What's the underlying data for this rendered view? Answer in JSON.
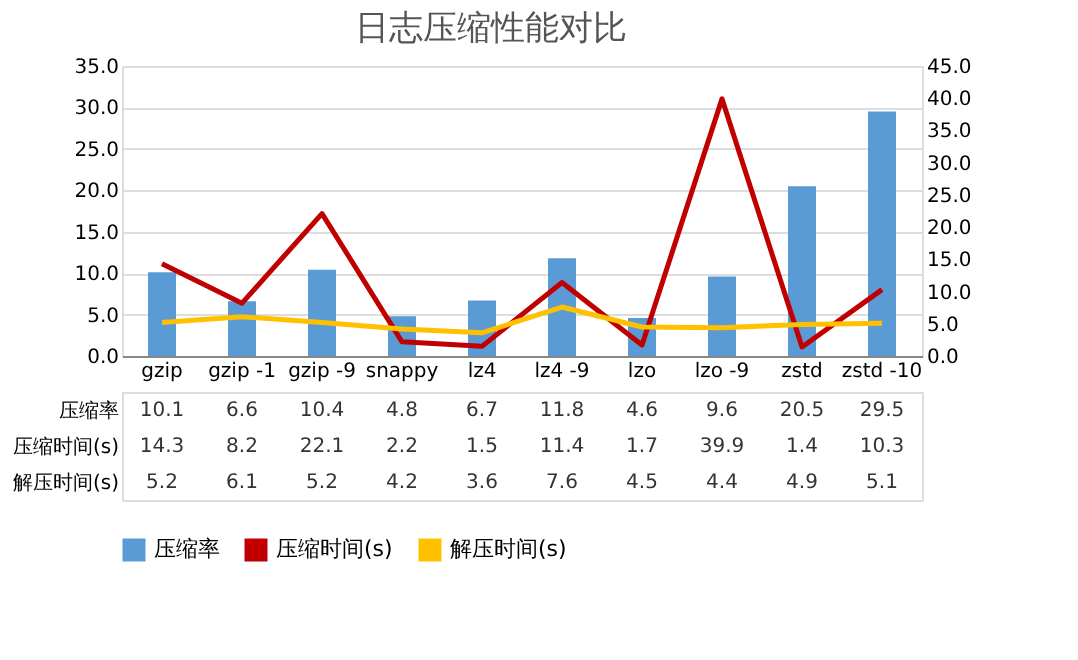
{
  "chart_data": {
    "type": "bar",
    "title": "日志压缩性能对比",
    "categories": [
      "gzip",
      "gzip -1",
      "gzip -9",
      "snappy",
      "lz4",
      "lz4 -9",
      "lzo",
      "lzo -9",
      "zstd",
      "zstd -10"
    ],
    "series": [
      {
        "name": "压缩率",
        "color": "#5b9bd5",
        "values": [
          10.1,
          6.6,
          10.4,
          4.8,
          6.7,
          11.8,
          4.6,
          9.6,
          20.5,
          29.5
        ]
      },
      {
        "name": "压缩时间(s)",
        "type": "line",
        "axis": "y2",
        "color": "#c00000",
        "values": [
          14.3,
          8.2,
          22.1,
          2.2,
          1.5,
          11.4,
          1.7,
          39.9,
          1.4,
          10.3
        ]
      },
      {
        "name": "解压时间(s)",
        "type": "line",
        "axis": "y2",
        "color": "#ffc000",
        "values": [
          5.2,
          6.1,
          5.2,
          4.2,
          3.6,
          7.6,
          4.5,
          4.4,
          4.9,
          5.1
        ]
      }
    ],
    "ylim": [
      0,
      35
    ],
    "yticks": [
      {
        "value": 0,
        "label": "0.0"
      },
      {
        "value": 5,
        "label": "5.0"
      },
      {
        "value": 10,
        "label": "10.0"
      },
      {
        "value": 15,
        "label": "15.0"
      },
      {
        "value": 20,
        "label": "20.0"
      },
      {
        "value": 25,
        "label": "25.0"
      },
      {
        "value": 30,
        "label": "30.0"
      },
      {
        "value": 35,
        "label": "35.0"
      }
    ],
    "y2lim": [
      0,
      45
    ],
    "y2ticks": [
      {
        "value": 0,
        "label": "0.0"
      },
      {
        "value": 5,
        "label": "5.0"
      },
      {
        "value": 10,
        "label": "10.0"
      },
      {
        "value": 15,
        "label": "15.0"
      },
      {
        "value": 20,
        "label": "20.0"
      },
      {
        "value": 25,
        "label": "25.0"
      },
      {
        "value": 30,
        "label": "30.0"
      },
      {
        "value": 35,
        "label": "35.0"
      },
      {
        "value": 40,
        "label": "40.0"
      },
      {
        "value": 45,
        "label": "45.0"
      }
    ],
    "grid": "y",
    "legend": "bottom",
    "data_labels": true,
    "marker": "none",
    "line_style": "solid"
  }
}
